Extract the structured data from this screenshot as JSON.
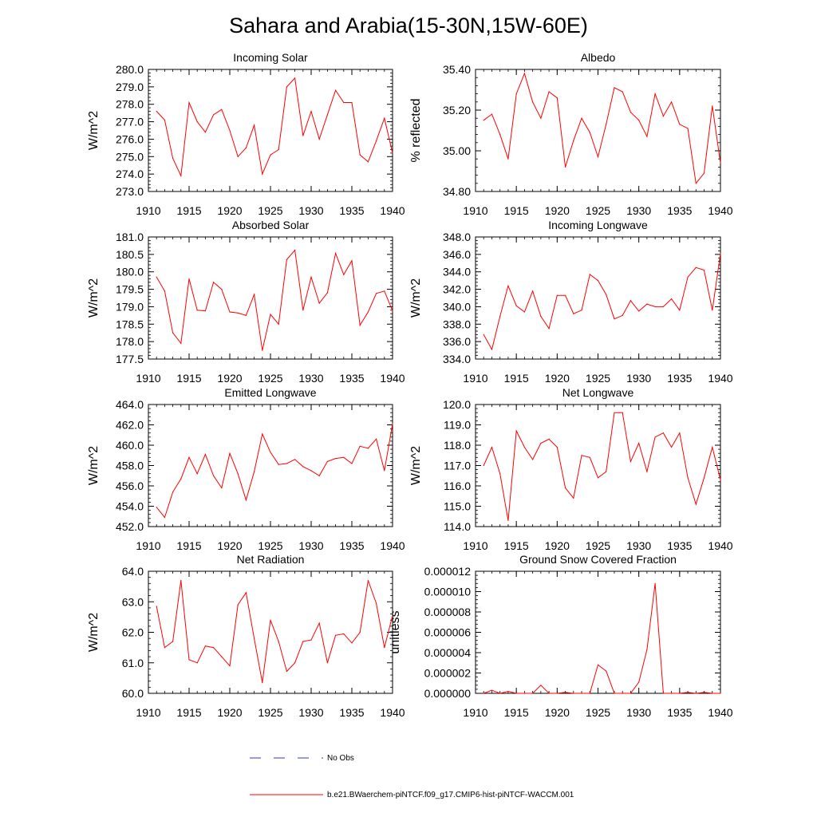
{
  "figure_title": "Sahara and Arabia(15-30N,15W-60E)",
  "legend": {
    "entries": [
      {
        "label": "No Obs",
        "color": "#3333cc",
        "style": "dashed"
      },
      {
        "label": "b.e21.BWaerchem-piNTCF.f09_g17.CMIP6-hist-piNTCF-WACCM.001",
        "color": "#ff0000",
        "style": "solid"
      }
    ]
  },
  "chart_data": [
    {
      "type": "line",
      "title": "Incoming Solar",
      "xlabel": "",
      "ylabel": "W/m^2",
      "xlim": [
        1910,
        1940
      ],
      "ylim": [
        273.0,
        280.0
      ],
      "xticks": [
        1910,
        1915,
        1920,
        1925,
        1930,
        1935,
        1940
      ],
      "yticks": [
        273.0,
        274.0,
        275.0,
        276.0,
        277.0,
        278.0,
        279.0,
        280.0
      ],
      "ytick_labels": [
        "273.0",
        "274.0",
        "275.0",
        "276.0",
        "277.0",
        "278.0",
        "279.0",
        "280.0"
      ],
      "grid": false,
      "series": [
        {
          "color": "#ff0000",
          "x": [
            1911,
            1912,
            1913,
            1914,
            1915,
            1916,
            1917,
            1918,
            1919,
            1920,
            1921,
            1922,
            1923,
            1924,
            1925,
            1926,
            1927,
            1928,
            1929,
            1930,
            1931,
            1932,
            1933,
            1934,
            1935,
            1936,
            1937,
            1938,
            1939,
            1940
          ],
          "values": [
            277.6,
            277.1,
            274.9,
            273.9,
            278.1,
            277.0,
            276.4,
            277.4,
            277.7,
            276.5,
            275.0,
            275.5,
            276.8,
            274.0,
            275.1,
            275.4,
            279.0,
            279.5,
            276.2,
            277.6,
            276.0,
            277.4,
            278.8,
            278.1,
            278.1,
            275.1,
            274.7,
            275.9,
            277.2,
            275.2
          ]
        }
      ]
    },
    {
      "type": "line",
      "title": "Albedo",
      "xlabel": "",
      "ylabel": "% reflected",
      "xlim": [
        1910,
        1940
      ],
      "ylim": [
        34.8,
        35.4
      ],
      "xticks": [
        1910,
        1915,
        1920,
        1925,
        1930,
        1935,
        1940
      ],
      "yticks": [
        34.8,
        35.0,
        35.2,
        35.4
      ],
      "ytick_labels": [
        "34.80",
        "35.00",
        "35.20",
        "35.40"
      ],
      "grid": false,
      "series": [
        {
          "color": "#ff0000",
          "x": [
            1911,
            1912,
            1913,
            1914,
            1915,
            1916,
            1917,
            1918,
            1919,
            1920,
            1921,
            1922,
            1923,
            1924,
            1925,
            1926,
            1927,
            1928,
            1929,
            1930,
            1931,
            1932,
            1933,
            1934,
            1935,
            1936,
            1937,
            1938,
            1939,
            1940
          ],
          "values": [
            35.15,
            35.18,
            35.08,
            34.96,
            35.28,
            35.38,
            35.24,
            35.16,
            35.29,
            35.26,
            34.92,
            35.05,
            35.16,
            35.09,
            34.97,
            35.13,
            35.31,
            35.29,
            35.19,
            35.15,
            35.07,
            35.28,
            35.17,
            35.24,
            35.13,
            35.11,
            34.84,
            34.89,
            35.22,
            34.94
          ]
        }
      ]
    },
    {
      "type": "line",
      "title": "Absorbed Solar",
      "xlabel": "",
      "ylabel": "W/m^2",
      "xlim": [
        1910,
        1940
      ],
      "ylim": [
        177.5,
        181.0
      ],
      "xticks": [
        1910,
        1915,
        1920,
        1925,
        1930,
        1935,
        1940
      ],
      "yticks": [
        177.5,
        178.0,
        178.5,
        179.0,
        179.5,
        180.0,
        180.5,
        181.0
      ],
      "ytick_labels": [
        "177.5",
        "178.0",
        "178.5",
        "179.0",
        "179.5",
        "180.0",
        "180.5",
        "181.0"
      ],
      "grid": false,
      "series": [
        {
          "color": "#ff0000",
          "x": [
            1911,
            1912,
            1913,
            1914,
            1915,
            1916,
            1917,
            1918,
            1919,
            1920,
            1921,
            1922,
            1923,
            1924,
            1925,
            1926,
            1927,
            1928,
            1929,
            1930,
            1931,
            1932,
            1933,
            1934,
            1935,
            1936,
            1937,
            1938,
            1939,
            1940
          ],
          "values": [
            179.85,
            179.45,
            178.25,
            177.95,
            179.8,
            178.9,
            178.88,
            179.7,
            179.5,
            178.85,
            178.82,
            178.75,
            179.35,
            177.75,
            178.78,
            178.5,
            180.35,
            180.62,
            178.9,
            179.85,
            179.1,
            179.4,
            180.53,
            179.92,
            180.32,
            178.47,
            178.85,
            179.38,
            179.45,
            178.88
          ]
        }
      ]
    },
    {
      "type": "line",
      "title": "Incoming Longwave",
      "xlabel": "",
      "ylabel": "W/m^2",
      "xlim": [
        1910,
        1940
      ],
      "ylim": [
        334.0,
        348.0
      ],
      "xticks": [
        1910,
        1915,
        1920,
        1925,
        1930,
        1935,
        1940
      ],
      "yticks": [
        334.0,
        336.0,
        338.0,
        340.0,
        342.0,
        344.0,
        346.0,
        348.0
      ],
      "ytick_labels": [
        "334.0",
        "336.0",
        "338.0",
        "340.0",
        "342.0",
        "344.0",
        "346.0",
        "348.0"
      ],
      "grid": false,
      "series": [
        {
          "color": "#ff0000",
          "x": [
            1911,
            1912,
            1913,
            1914,
            1915,
            1916,
            1917,
            1918,
            1919,
            1920,
            1921,
            1922,
            1923,
            1924,
            1925,
            1926,
            1927,
            1928,
            1929,
            1930,
            1931,
            1932,
            1933,
            1934,
            1935,
            1936,
            1937,
            1938,
            1939,
            1940
          ],
          "values": [
            336.8,
            335.1,
            338.9,
            342.4,
            340.1,
            339.4,
            341.8,
            338.9,
            337.5,
            341.3,
            341.3,
            339.2,
            339.6,
            343.7,
            343.0,
            341.4,
            338.6,
            339.0,
            340.7,
            339.5,
            340.3,
            340.0,
            340.0,
            340.9,
            339.6,
            343.4,
            344.5,
            344.2,
            339.6,
            346.1
          ]
        }
      ]
    },
    {
      "type": "line",
      "title": "Emitted Longwave",
      "xlabel": "",
      "ylabel": "W/m^2",
      "xlim": [
        1910,
        1940
      ],
      "ylim": [
        452.0,
        464.0
      ],
      "xticks": [
        1910,
        1915,
        1920,
        1925,
        1930,
        1935,
        1940
      ],
      "yticks": [
        452.0,
        454.0,
        456.0,
        458.0,
        460.0,
        462.0,
        464.0
      ],
      "ytick_labels": [
        "452.0",
        "454.0",
        "456.0",
        "458.0",
        "460.0",
        "462.0",
        "464.0"
      ],
      "grid": false,
      "series": [
        {
          "color": "#ff0000",
          "x": [
            1911,
            1912,
            1913,
            1914,
            1915,
            1916,
            1917,
            1918,
            1919,
            1920,
            1921,
            1922,
            1923,
            1924,
            1925,
            1926,
            1927,
            1928,
            1929,
            1930,
            1931,
            1932,
            1933,
            1934,
            1935,
            1936,
            1937,
            1938,
            1939,
            1940
          ],
          "values": [
            453.9,
            452.9,
            455.4,
            456.7,
            458.8,
            457.2,
            459.1,
            457.0,
            455.8,
            459.2,
            457.2,
            454.6,
            457.4,
            461.1,
            459.3,
            458.1,
            458.2,
            458.6,
            457.9,
            457.5,
            457.0,
            458.4,
            458.7,
            458.8,
            458.2,
            459.9,
            459.7,
            460.6,
            457.5,
            462.1
          ]
        }
      ]
    },
    {
      "type": "line",
      "title": "Net Longwave",
      "xlabel": "",
      "ylabel": "W/m^2",
      "xlim": [
        1910,
        1940
      ],
      "ylim": [
        114.0,
        120.0
      ],
      "xticks": [
        1910,
        1915,
        1920,
        1925,
        1930,
        1935,
        1940
      ],
      "yticks": [
        114.0,
        115.0,
        116.0,
        117.0,
        118.0,
        119.0,
        120.0
      ],
      "ytick_labels": [
        "114.0",
        "115.0",
        "116.0",
        "117.0",
        "118.0",
        "119.0",
        "120.0"
      ],
      "grid": false,
      "series": [
        {
          "color": "#ff0000",
          "x": [
            1911,
            1912,
            1913,
            1914,
            1915,
            1916,
            1917,
            1918,
            1919,
            1920,
            1921,
            1922,
            1923,
            1924,
            1925,
            1926,
            1927,
            1928,
            1929,
            1930,
            1931,
            1932,
            1933,
            1934,
            1935,
            1936,
            1937,
            1938,
            1939,
            1940
          ],
          "values": [
            117.0,
            117.9,
            116.6,
            114.3,
            118.7,
            117.9,
            117.3,
            118.1,
            118.3,
            117.9,
            115.9,
            115.4,
            117.5,
            117.4,
            116.4,
            116.7,
            119.6,
            119.6,
            117.2,
            118.1,
            116.7,
            118.4,
            118.6,
            117.9,
            118.6,
            116.4,
            115.1,
            116.4,
            117.9,
            116.3
          ]
        }
      ]
    },
    {
      "type": "line",
      "title": "Net Radiation",
      "xlabel": "",
      "ylabel": "W/m^2",
      "xlim": [
        1910,
        1940
      ],
      "ylim": [
        60.0,
        64.0
      ],
      "xticks": [
        1910,
        1915,
        1920,
        1925,
        1930,
        1935,
        1940
      ],
      "yticks": [
        60.0,
        61.0,
        62.0,
        63.0,
        64.0
      ],
      "ytick_labels": [
        "60.0",
        "61.0",
        "62.0",
        "63.0",
        "64.0"
      ],
      "grid": false,
      "series": [
        {
          "color": "#ff0000",
          "x": [
            1911,
            1912,
            1913,
            1914,
            1915,
            1916,
            1917,
            1918,
            1919,
            1920,
            1921,
            1922,
            1923,
            1924,
            1925,
            1926,
            1927,
            1928,
            1929,
            1930,
            1931,
            1932,
            1933,
            1934,
            1935,
            1936,
            1937,
            1938,
            1939,
            1940
          ],
          "values": [
            62.85,
            61.5,
            61.7,
            63.7,
            61.1,
            61.0,
            61.55,
            61.5,
            61.2,
            60.9,
            62.9,
            63.3,
            61.8,
            60.35,
            62.4,
            61.7,
            60.72,
            61.0,
            61.7,
            61.75,
            62.3,
            61.0,
            61.9,
            61.95,
            61.65,
            62.0,
            63.7,
            62.95,
            61.5,
            62.55
          ]
        }
      ]
    },
    {
      "type": "line",
      "title": "Ground Snow Covered Fraction",
      "xlabel": "",
      "ylabel": "unitless",
      "xlim": [
        1910,
        1940
      ],
      "ylim": [
        0.0,
        1.2e-05
      ],
      "xticks": [
        1910,
        1915,
        1920,
        1925,
        1930,
        1935,
        1940
      ],
      "yticks": [
        0.0,
        2e-06,
        4e-06,
        6e-06,
        8e-06,
        1e-05,
        1.2e-05
      ],
      "ytick_labels": [
        "0.000000",
        "0.000002",
        "0.000004",
        "0.000006",
        "0.000008",
        "0.000010",
        "0.000012"
      ],
      "grid": false,
      "series": [
        {
          "color": "#ff0000",
          "x": [
            1911,
            1912,
            1913,
            1914,
            1915,
            1916,
            1917,
            1918,
            1919,
            1920,
            1921,
            1922,
            1923,
            1924,
            1925,
            1926,
            1927,
            1928,
            1929,
            1930,
            1931,
            1932,
            1933,
            1934,
            1935,
            1936,
            1937,
            1938,
            1939,
            1940
          ],
          "values": [
            0.0,
            3e-07,
            0.0,
            2e-07,
            0.0,
            0.0,
            0.0,
            8e-07,
            0.0,
            0.0,
            1e-07,
            0.0,
            0.0,
            0.0,
            2.8e-06,
            2.2e-06,
            0.0,
            0.0,
            0.0,
            1.1e-06,
            4.3e-06,
            1.08e-05,
            0.0,
            0.0,
            0.0,
            1e-07,
            0.0,
            1e-07,
            0.0,
            0.0
          ]
        }
      ]
    }
  ]
}
